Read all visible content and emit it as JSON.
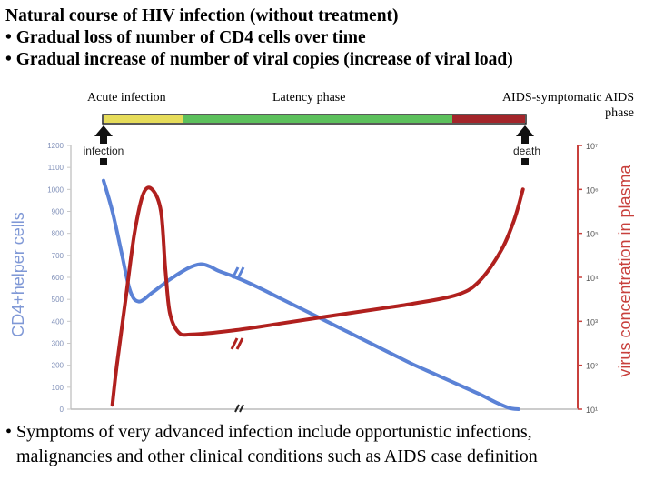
{
  "heading": {
    "line1": "Natural course of HIV infection (without treatment)",
    "line2": "• Gradual loss of number of CD4 cells over time",
    "line3": "• Gradual increase of number of viral copies (increase of viral load)"
  },
  "phases": {
    "acute": "Acute infection",
    "latency": "Latency phase",
    "aids_line1": "AIDS-symptomatic AIDS",
    "aids_line2": "phase"
  },
  "events": {
    "infection": "infection",
    "death": "death"
  },
  "footer": {
    "line1": "• Symptoms of very advanced infection include opportunistic infections,",
    "line2": "malignancies and other clinical conditions such as AIDS case definition"
  },
  "colors": {
    "cd4": "#5b82d6",
    "virus": "#b0201e",
    "acute_bar": "#e6dc5a",
    "latency_bar": "#5cc05c",
    "aids_bar": "#a3252a",
    "left_axis": "#7f98d6",
    "right_axis": "#c8403c"
  },
  "chart_data": {
    "type": "line",
    "title": "",
    "xlabel": "",
    "ylabel": "CD4+helper cells",
    "y2label": "virus concentration in plasma",
    "yticks": [
      "0",
      "100",
      "200",
      "300",
      "400",
      "500",
      "600",
      "700",
      "800",
      "900",
      "1000",
      "1100",
      "1200"
    ],
    "ylim": [
      0,
      1200
    ],
    "y2ticks": [
      "10¹",
      "10²",
      "10³",
      "10⁴",
      "10⁵",
      "10⁶",
      "10⁷"
    ],
    "y2lim": [
      1,
      7
    ],
    "y2scale": "log",
    "x_axis": "time (unlabeled, with axis breaks)",
    "series": [
      {
        "name": "CD4+helper cells",
        "axis": "left",
        "points": [
          [
            0.0,
            1040
          ],
          [
            0.02,
            900
          ],
          [
            0.04,
            720
          ],
          [
            0.06,
            540
          ],
          [
            0.08,
            490
          ],
          [
            0.11,
            530
          ],
          [
            0.15,
            590
          ],
          [
            0.19,
            640
          ],
          [
            0.22,
            660
          ],
          [
            0.24,
            650
          ],
          [
            0.26,
            630
          ],
          [
            0.3,
            600
          ],
          [
            0.35,
            555
          ],
          [
            0.4,
            505
          ],
          [
            0.45,
            455
          ],
          [
            0.5,
            405
          ],
          [
            0.55,
            355
          ],
          [
            0.6,
            305
          ],
          [
            0.65,
            255
          ],
          [
            0.7,
            205
          ],
          [
            0.75,
            160
          ],
          [
            0.8,
            115
          ],
          [
            0.85,
            70
          ],
          [
            0.89,
            30
          ],
          [
            0.92,
            5
          ],
          [
            0.94,
            0
          ]
        ]
      },
      {
        "name": "virus concentration in plasma",
        "axis": "right",
        "points": [
          [
            0.02,
            1.1
          ],
          [
            0.03,
            2.0
          ],
          [
            0.05,
            3.5
          ],
          [
            0.07,
            5.0
          ],
          [
            0.09,
            5.9
          ],
          [
            0.11,
            6.0
          ],
          [
            0.13,
            5.5
          ],
          [
            0.14,
            4.2
          ],
          [
            0.15,
            3.2
          ],
          [
            0.17,
            2.75
          ],
          [
            0.2,
            2.7
          ],
          [
            0.3,
            2.8
          ],
          [
            0.4,
            2.95
          ],
          [
            0.5,
            3.1
          ],
          [
            0.6,
            3.25
          ],
          [
            0.7,
            3.4
          ],
          [
            0.8,
            3.6
          ],
          [
            0.85,
            3.9
          ],
          [
            0.9,
            4.6
          ],
          [
            0.93,
            5.3
          ],
          [
            0.95,
            6.0
          ]
        ]
      }
    ],
    "phases": [
      {
        "name": "Acute infection",
        "from": 0.0,
        "to": 0.19
      },
      {
        "name": "Latency phase",
        "from": 0.19,
        "to": 0.87
      },
      {
        "name": "AIDS-symptomatic AIDS phase",
        "from": 0.87,
        "to": 1.0
      }
    ],
    "legend": "none",
    "grid": false
  }
}
